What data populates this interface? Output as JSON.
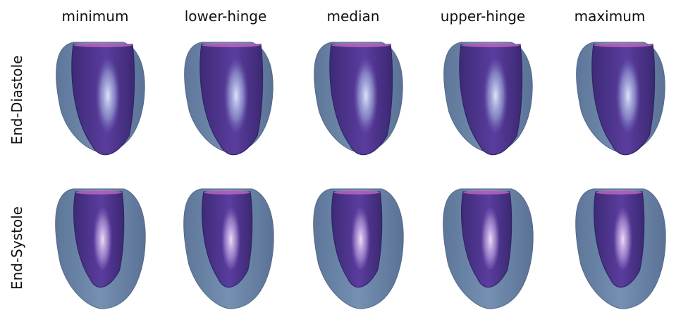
{
  "columns": [
    "minimum",
    "lower-hinge",
    "median",
    "upper-hinge",
    "maximum"
  ],
  "rows": [
    "End-Diastole",
    "End-Systole"
  ],
  "colors": {
    "epicardium": "#6b86a8",
    "endocardium": "#53358f",
    "highlight": "#d9cdf0",
    "rim": "#c86cc6"
  }
}
